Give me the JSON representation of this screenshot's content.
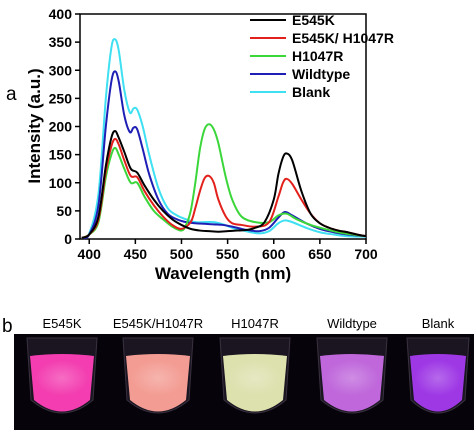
{
  "panels": {
    "a": "a",
    "b": "b"
  },
  "chart_data": {
    "type": "line",
    "xlabel": "Wavelength (nm)",
    "ylabel": "Intensity (a.u.)",
    "xlim": [
      390,
      700
    ],
    "ylim": [
      0,
      400
    ],
    "xticks": [
      400,
      450,
      500,
      550,
      600,
      650,
      700
    ],
    "yticks": [
      0,
      50,
      100,
      150,
      200,
      250,
      300,
      350,
      400
    ],
    "legend_position": "top-right",
    "grid": false,
    "series": [
      {
        "name": "E545K",
        "color": "#000000",
        "x": [
          392,
          400,
          410,
          418,
          424,
          428,
          432,
          438,
          445,
          452,
          460,
          470,
          480,
          490,
          500,
          510,
          520,
          530,
          540,
          550,
          560,
          570,
          580,
          590,
          600,
          605,
          610,
          614,
          620,
          630,
          640,
          650,
          660,
          670,
          680,
          690,
          700
        ],
        "y": [
          2,
          8,
          40,
          130,
          180,
          192,
          180,
          155,
          125,
          118,
          95,
          70,
          50,
          35,
          25,
          18,
          15,
          14,
          13,
          14,
          15,
          16,
          20,
          30,
          70,
          115,
          145,
          152,
          140,
          85,
          45,
          28,
          20,
          15,
          12,
          8,
          5
        ]
      },
      {
        "name": "E545K/ H1047R",
        "color": "#e3211c",
        "x": [
          392,
          400,
          410,
          418,
          424,
          428,
          432,
          438,
          445,
          452,
          460,
          470,
          480,
          490,
          500,
          510,
          515,
          520,
          525,
          530,
          535,
          540,
          548,
          555,
          565,
          580,
          595,
          605,
          610,
          614,
          620,
          630,
          640,
          650,
          660,
          670,
          680,
          690,
          700
        ],
        "y": [
          2,
          8,
          35,
          120,
          165,
          178,
          168,
          140,
          112,
          110,
          85,
          60,
          40,
          25,
          18,
          30,
          55,
          85,
          108,
          112,
          100,
          70,
          40,
          28,
          25,
          22,
          30,
          75,
          100,
          107,
          98,
          70,
          45,
          28,
          20,
          15,
          12,
          8,
          5
        ]
      },
      {
        "name": "H1047R",
        "color": "#3ad63a",
        "x": [
          392,
          400,
          410,
          418,
          424,
          428,
          432,
          438,
          445,
          452,
          460,
          470,
          480,
          490,
          500,
          505,
          510,
          515,
          520,
          525,
          530,
          535,
          540,
          548,
          555,
          565,
          580,
          595,
          605,
          614,
          625,
          640,
          655,
          670,
          685,
          700
        ],
        "y": [
          2,
          8,
          30,
          110,
          150,
          162,
          150,
          125,
          100,
          100,
          75,
          50,
          35,
          22,
          15,
          25,
          50,
          100,
          160,
          195,
          204,
          195,
          170,
          110,
          70,
          40,
          30,
          30,
          42,
          45,
          35,
          25,
          18,
          12,
          8,
          5
        ]
      },
      {
        "name": "Wildtype",
        "color": "#1f1fb5",
        "x": [
          392,
          400,
          410,
          418,
          424,
          428,
          432,
          438,
          444,
          448,
          452,
          458,
          465,
          475,
          485,
          495,
          505,
          515,
          525,
          535,
          545,
          555,
          565,
          575,
          585,
          595,
          605,
          612,
          620,
          635,
          650,
          665,
          680,
          700
        ],
        "y": [
          2,
          8,
          60,
          200,
          280,
          298,
          280,
          220,
          190,
          198,
          195,
          160,
          115,
          70,
          45,
          35,
          30,
          28,
          27,
          26,
          25,
          22,
          18,
          15,
          14,
          20,
          38,
          48,
          42,
          28,
          18,
          12,
          8,
          5
        ]
      },
      {
        "name": "Blank",
        "color": "#3ee0f2",
        "x": [
          392,
          400,
          410,
          418,
          424,
          428,
          432,
          438,
          444,
          448,
          452,
          458,
          465,
          475,
          485,
          495,
          505,
          515,
          525,
          535,
          545,
          555,
          565,
          575,
          585,
          595,
          605,
          612,
          620,
          635,
          650,
          665,
          680,
          700
        ],
        "y": [
          2,
          10,
          80,
          250,
          340,
          355,
          335,
          265,
          225,
          232,
          230,
          200,
          150,
          90,
          55,
          42,
          35,
          30,
          30,
          30,
          26,
          20,
          16,
          12,
          10,
          14,
          28,
          33,
          30,
          20,
          12,
          8,
          5,
          4
        ]
      }
    ]
  },
  "photo": {
    "labels": [
      "E545K",
      "E545K/H1047R",
      "H1047R",
      "Wildtype",
      "Blank"
    ],
    "colors": [
      "#ff3fb8",
      "#ffa39a",
      "#e8ecb6",
      "#c86be6",
      "#a53af0"
    ]
  }
}
